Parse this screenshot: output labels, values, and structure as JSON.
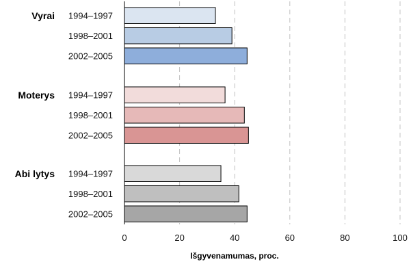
{
  "chart_data": {
    "type": "bar",
    "orientation": "horizontal",
    "xlabel": "Išgyvenamumas, proc.",
    "xlim": [
      0,
      100
    ],
    "xticks": [
      0,
      20,
      40,
      60,
      80,
      100
    ],
    "grid": "vertical dashed",
    "groups": [
      {
        "label": "Vyrai",
        "bars": [
          {
            "period": "1994–1997",
            "value": 33,
            "color": "#dbe5f1"
          },
          {
            "period": "1998–2001",
            "value": 39,
            "color": "#b8cce4"
          },
          {
            "period": "2002–2005",
            "value": 44.5,
            "color": "#8eaedb"
          }
        ]
      },
      {
        "label": "Moterys",
        "bars": [
          {
            "period": "1994–1997",
            "value": 36.5,
            "color": "#f2dcdb"
          },
          {
            "period": "1998–2001",
            "value": 43.5,
            "color": "#e6b9b8"
          },
          {
            "period": "2002–2005",
            "value": 45,
            "color": "#d99594"
          }
        ]
      },
      {
        "label": "Abi lytys",
        "bars": [
          {
            "period": "1994–1997",
            "value": 35,
            "color": "#d9d9d9"
          },
          {
            "period": "1998–2001",
            "value": 41.5,
            "color": "#bfbfbf"
          },
          {
            "period": "2002–2005",
            "value": 44.5,
            "color": "#a6a6a6"
          }
        ]
      }
    ]
  }
}
